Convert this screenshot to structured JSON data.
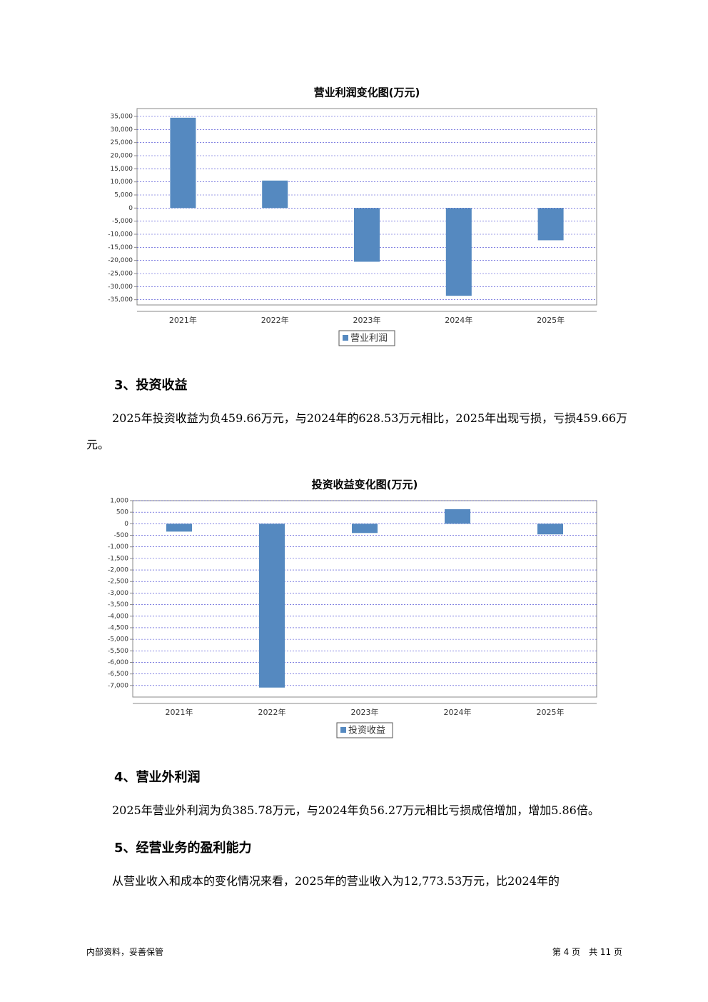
{
  "chart_data": [
    {
      "type": "bar",
      "title": "营业利润变化图(万元)",
      "categories": [
        "2021年",
        "2022年",
        "2023年",
        "2024年",
        "2025年"
      ],
      "series": [
        {
          "name": "营业利润",
          "color": "#5589c0",
          "values": [
            34500,
            10500,
            -20500,
            -33500,
            -12300
          ]
        }
      ],
      "ylim": [
        -37000,
        38000
      ],
      "yticks": [
        {
          "value": 35000,
          "label": "35,000"
        },
        {
          "value": 30000,
          "label": "30,000"
        },
        {
          "value": 25000,
          "label": "25,000"
        },
        {
          "value": 20000,
          "label": "20,000"
        },
        {
          "value": 15000,
          "label": "15,000"
        },
        {
          "value": 10000,
          "label": "10,000"
        },
        {
          "value": 5000,
          "label": "5,000"
        },
        0,
        {
          "value": -5000,
          "label": "-5,000"
        },
        {
          "value": -10000,
          "label": "-10,000"
        },
        {
          "value": -15000,
          "label": "-15,000"
        },
        {
          "value": -20000,
          "label": "-20,000"
        },
        {
          "value": -25000,
          "label": "-25,000"
        },
        {
          "value": -30000,
          "label": "-30,000"
        },
        {
          "value": -35000,
          "label": "-35,000"
        }
      ],
      "grid": true
    },
    {
      "type": "bar",
      "title": "投资收益变化图(万元)",
      "categories": [
        "2021年",
        "2022年",
        "2023年",
        "2024年",
        "2025年"
      ],
      "series": [
        {
          "name": "投资收益",
          "color": "#5589c0",
          "values": [
            -340,
            -7090,
            -400,
            628.53,
            -459.66
          ]
        }
      ],
      "ylim": [
        -7500,
        1000
      ],
      "yticks": [
        {
          "value": 1000,
          "label": "1,000"
        },
        500,
        0,
        -500,
        {
          "value": -1000,
          "label": "-1,000"
        },
        {
          "value": -1500,
          "label": "-1,500"
        },
        {
          "value": -2000,
          "label": "-2,000"
        },
        {
          "value": -2500,
          "label": "-2,500"
        },
        {
          "value": -3000,
          "label": "-3,000"
        },
        {
          "value": -3500,
          "label": "-3,500"
        },
        {
          "value": -4000,
          "label": "-4,000"
        },
        {
          "value": -4500,
          "label": "-4,500"
        },
        {
          "value": -5000,
          "label": "-5,000"
        },
        {
          "value": -5500,
          "label": "-5,500"
        },
        {
          "value": -6000,
          "label": "-6,000"
        },
        {
          "value": -6500,
          "label": "-6,500"
        },
        {
          "value": -7000,
          "label": "-7,000"
        }
      ],
      "grid": true
    }
  ],
  "sections": [
    {
      "heading": "3、投资收益",
      "paragraph": "2025年投资收益为负459.66万元，与2024年的628.53万元相比，2025年出现亏损，亏损459.66万元。"
    },
    {
      "heading": "4、营业外利润",
      "paragraph": "2025年营业外利润为负385.78万元，与2024年负56.27万元相比亏损成倍增加，增加5.86倍。"
    },
    {
      "heading": "5、经营业务的盈利能力",
      "paragraph": "从营业收入和成本的变化情况来看，2025年的营业收入为12,773.53万元，比2024年的"
    }
  ],
  "footer": {
    "left": "内部资料，妥善保管",
    "right": "第 4 页　共 11 页"
  }
}
